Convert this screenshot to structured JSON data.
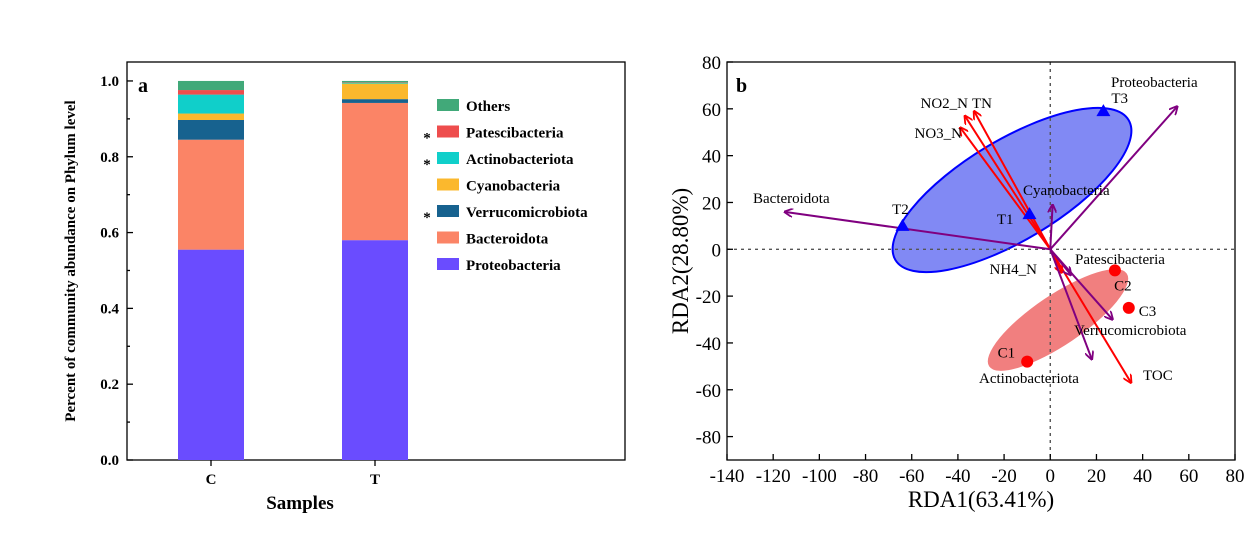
{
  "chart_data": [
    {
      "panel_label": "a",
      "type": "bar",
      "stacked": true,
      "categories": [
        "C",
        "T"
      ],
      "xlabel": "Samples",
      "ylabel": "Percent of community abundance on Phylum level",
      "ylim": [
        0,
        1.05
      ],
      "yticks": [
        "0.0",
        "0.2",
        "0.4",
        "0.6",
        "0.8",
        "1.0"
      ],
      "legend_position": "right",
      "significance_mark": "*",
      "series": [
        {
          "name": "Proteobacteria",
          "color": "#6a4cff",
          "values": [
            0.555,
            0.58
          ],
          "significant": false
        },
        {
          "name": "Bacteroidota",
          "color": "#fb8466",
          "values": [
            0.29,
            0.362
          ],
          "significant": false
        },
        {
          "name": "Verrucomicrobiota",
          "color": "#17628f",
          "values": [
            0.052,
            0.01
          ],
          "significant": true
        },
        {
          "name": "Cyanobacteria",
          "color": "#fbb82d",
          "values": [
            0.017,
            0.041
          ],
          "significant": false
        },
        {
          "name": "Actinobacteriota",
          "color": "#10cfca",
          "values": [
            0.05,
            0.002
          ],
          "significant": true
        },
        {
          "name": "Patescibacteria",
          "color": "#ee4d4d",
          "values": [
            0.012,
            0.001
          ],
          "significant": true
        },
        {
          "name": "Others",
          "color": "#41a979",
          "values": [
            0.024,
            0.004
          ],
          "significant": false
        }
      ]
    },
    {
      "panel_label": "b",
      "type": "scatter",
      "xlabel": "RDA1(63.41%)",
      "ylabel": "RDA2(28.80%)",
      "xlim": [
        -140,
        80
      ],
      "ylim": [
        -90,
        80
      ],
      "xticks": [
        -140,
        -120,
        -100,
        -80,
        -60,
        -40,
        -20,
        0,
        20,
        40,
        60,
        80
      ],
      "yticks": [
        80,
        60,
        40,
        20,
        0,
        -20,
        -40,
        -60,
        -80
      ],
      "reference_lines": {
        "x": 0,
        "y": 0,
        "style": "dotted"
      },
      "env_color": "#ff0000",
      "taxa_color": "#800080",
      "environment_arrows": [
        {
          "label": "NO2_N",
          "x": -37,
          "y": 57
        },
        {
          "label": "TN",
          "x": -33,
          "y": 59
        },
        {
          "label": "NO3_N",
          "x": -39,
          "y": 52
        },
        {
          "label": "NH4_N",
          "x": 5,
          "y": -10
        },
        {
          "label": "TOC",
          "x": 35,
          "y": -57
        }
      ],
      "taxa_arrows": [
        {
          "label": "Proteobacteria",
          "x": 55,
          "y": 61
        },
        {
          "label": "Bacteroidota",
          "x": -115,
          "y": 16
        },
        {
          "label": "Cyanobacteria",
          "x": 1,
          "y": 19
        },
        {
          "label": "Patescibacteria",
          "x": 9,
          "y": -11
        },
        {
          "label": "Verrucomicrobiota",
          "x": 27,
          "y": -30
        },
        {
          "label": "Actinobacteriota",
          "x": 18,
          "y": -47
        }
      ],
      "sample_groups": [
        {
          "group": "T",
          "color": "#0000ff",
          "ellipse_fill": "#6b74f2",
          "points": [
            {
              "label": "T1",
              "x": -9,
              "y": 15
            },
            {
              "label": "T2",
              "x": -64,
              "y": 10
            },
            {
              "label": "T3",
              "x": 23,
              "y": 59
            }
          ]
        },
        {
          "group": "C",
          "color": "#ff0000",
          "ellipse_fill": "#f07878",
          "points": [
            {
              "label": "C1",
              "x": -10,
              "y": -48
            },
            {
              "label": "C2",
              "x": 28,
              "y": -9
            },
            {
              "label": "C3",
              "x": 34,
              "y": -25
            }
          ]
        }
      ]
    }
  ]
}
